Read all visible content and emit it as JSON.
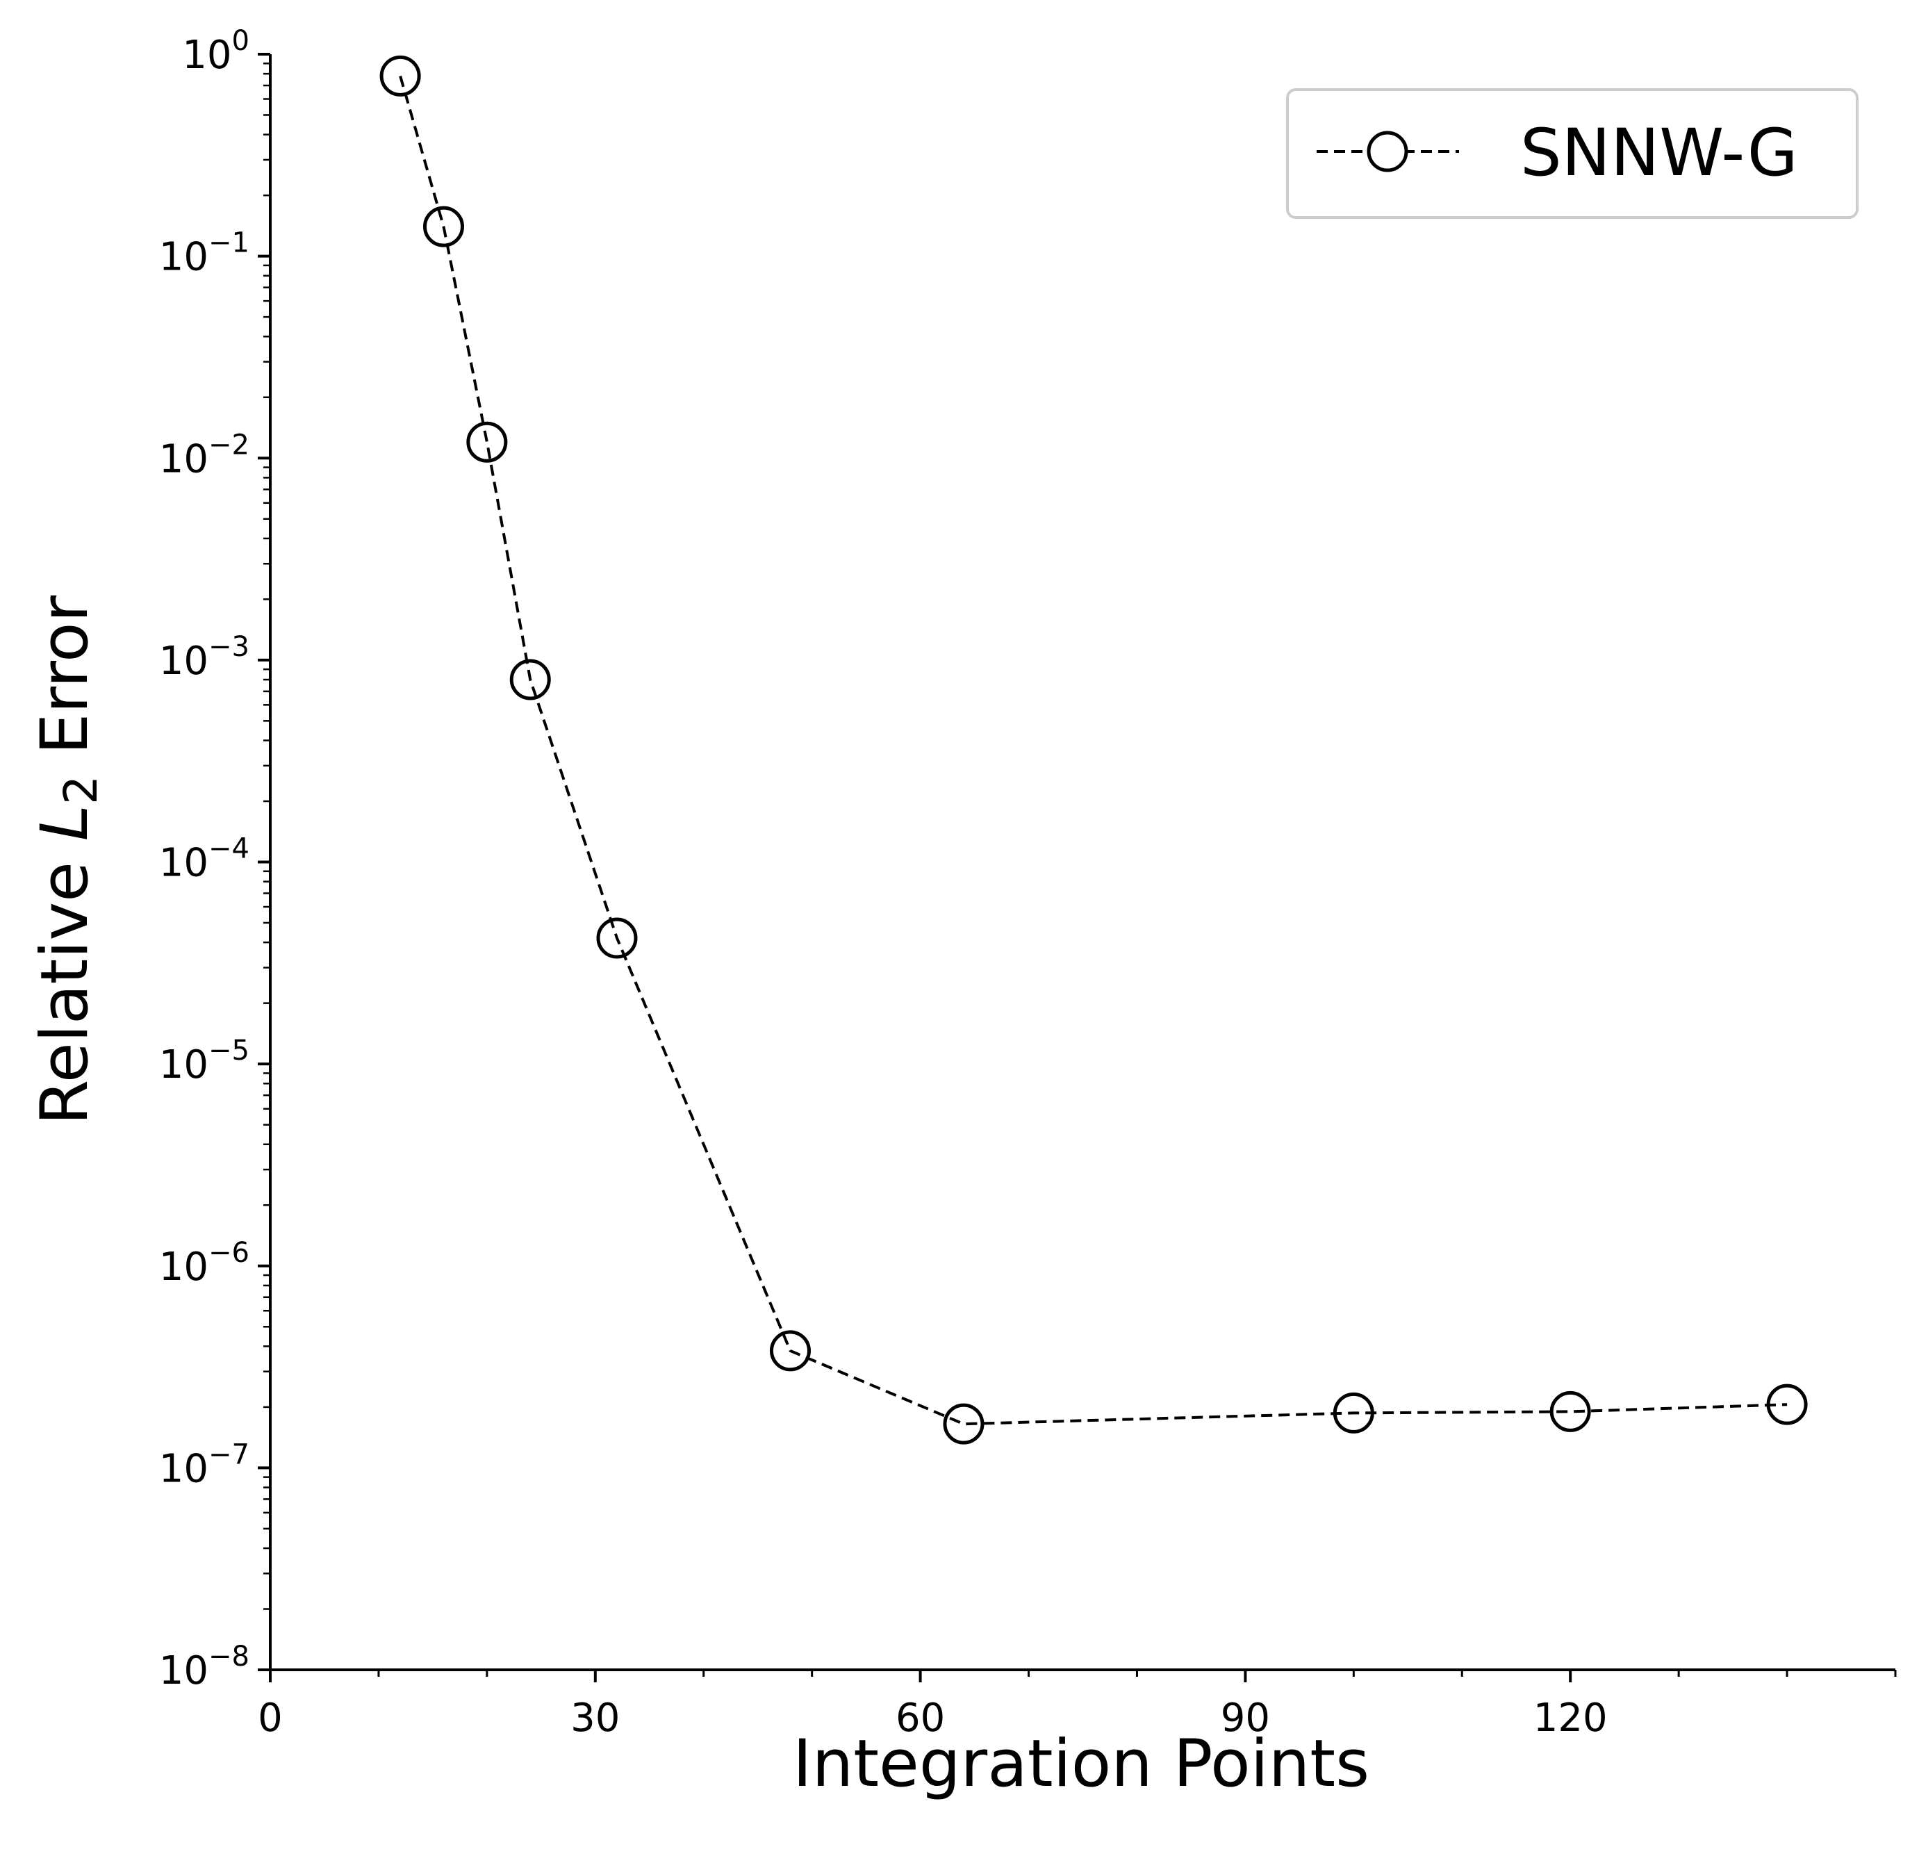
{
  "chart_data": {
    "type": "line",
    "xlabel": "Integration Points",
    "ylabel": {
      "prefix": "Relative ",
      "symbol": "L",
      "subscript": "2",
      "suffix": " Error"
    },
    "xlim": [
      0,
      150
    ],
    "ylim": [
      1e-08,
      1
    ],
    "yscale": "log",
    "grid": false,
    "legend_position": "top-right",
    "xticks": [
      {
        "value": 0,
        "label": "0"
      },
      {
        "value": 30,
        "label": "30"
      },
      {
        "value": 60,
        "label": "60"
      },
      {
        "value": 90,
        "label": "90"
      },
      {
        "value": 120,
        "label": "120"
      }
    ],
    "yticks": [
      {
        "exp": 0,
        "base": "10",
        "power": "0"
      },
      {
        "exp": -1,
        "base": "10",
        "power": "−1"
      },
      {
        "exp": -2,
        "base": "10",
        "power": "−2"
      },
      {
        "exp": -3,
        "base": "10",
        "power": "−3"
      },
      {
        "exp": -4,
        "base": "10",
        "power": "−4"
      },
      {
        "exp": -5,
        "base": "10",
        "power": "−5"
      },
      {
        "exp": -6,
        "base": "10",
        "power": "−6"
      },
      {
        "exp": -7,
        "base": "10",
        "power": "−7"
      },
      {
        "exp": -8,
        "base": "10",
        "power": "−8"
      }
    ],
    "series": [
      {
        "name": "SNNW-G",
        "color": "#000000",
        "line_style": "dashed",
        "marker": "open-circle",
        "x": [
          12,
          16,
          20,
          24,
          32,
          48,
          64,
          100,
          120,
          140
        ],
        "y": [
          0.78,
          0.14,
          0.012,
          0.0008,
          4.2e-05,
          3.8e-07,
          1.65e-07,
          1.87e-07,
          1.9e-07,
          2.06e-07
        ]
      }
    ]
  }
}
